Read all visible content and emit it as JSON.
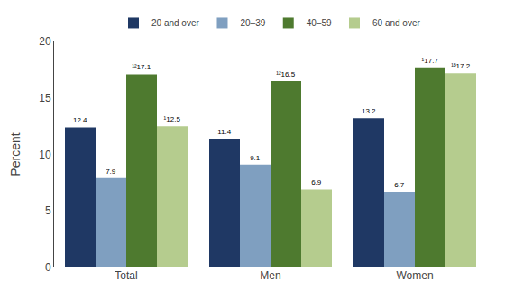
{
  "chart_data": {
    "type": "bar",
    "ylabel": "Percent",
    "categories": [
      "Total",
      "Men",
      "Women"
    ],
    "series": [
      {
        "name": "20 and over",
        "color": "#1f3864",
        "values": [
          12.4,
          11.4,
          13.2
        ],
        "value_labels": [
          "12.4",
          "11.4",
          "13.2"
        ]
      },
      {
        "name": "20–39",
        "color": "#7f9fc0",
        "values": [
          7.9,
          9.1,
          6.7
        ],
        "value_labels": [
          "7.9",
          "9.1",
          "6.7"
        ]
      },
      {
        "name": "40–59",
        "color": "#4e7a2f",
        "values": [
          17.1,
          16.5,
          17.7
        ],
        "value_labels": [
          "¹²17.1",
          "¹²16.5",
          "¹17.7"
        ]
      },
      {
        "name": "60 and over",
        "color": "#b5cc8e",
        "values": [
          12.5,
          6.9,
          17.2
        ],
        "value_labels": [
          "¹12.5",
          "6.9",
          "¹³17.2"
        ]
      }
    ],
    "ylim": [
      0,
      20
    ],
    "yticks": [
      0,
      5,
      10,
      15,
      20
    ],
    "grid": false,
    "legend": "top",
    "data_labels": true
  }
}
